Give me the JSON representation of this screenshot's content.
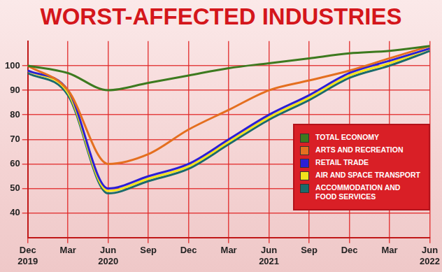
{
  "chart_data": {
    "type": "line",
    "title": "WORST-AFFECTED INDUSTRIES",
    "categories": [
      [
        "Dec",
        "2019"
      ],
      [
        "Mar"
      ],
      [
        "Jun",
        "2020"
      ],
      [
        "Sep"
      ],
      [
        "Dec"
      ],
      [
        "Mar"
      ],
      [
        "Jun",
        "2021"
      ],
      [
        "Sep"
      ],
      [
        "Dec"
      ],
      [
        "Mar"
      ],
      [
        "Jun",
        "2022"
      ]
    ],
    "series": [
      {
        "name": "TOTAL ECONOMY",
        "color": "#3d7a1f",
        "values": [
          100,
          97,
          90,
          93,
          96,
          99,
          101,
          103,
          105,
          106,
          108
        ]
      },
      {
        "name": "ARTS AND RECREATION",
        "color": "#e46f1f",
        "values": [
          100,
          90,
          60,
          64,
          74,
          82,
          90,
          94,
          98,
          103,
          108
        ]
      },
      {
        "name": "RETAIL TRADE",
        "color": "#2b1fd6",
        "values": [
          98,
          90,
          50,
          55,
          60,
          70,
          80,
          88,
          97,
          102,
          107
        ]
      },
      {
        "name": "AIR AND SPACE TRANSPORT",
        "color": "#f2e21c",
        "values": [
          98,
          89,
          49,
          54,
          59,
          69,
          79,
          87,
          96,
          101,
          107
        ]
      },
      {
        "name": "ACCOMMODATION AND FOOD SERVICES",
        "color": "#1b6b6b",
        "values": [
          97,
          88,
          48,
          53,
          58,
          68,
          78,
          86,
          95,
          100,
          106
        ]
      }
    ],
    "ylim": [
      30,
      110
    ],
    "yticks": [
      40,
      50,
      60,
      70,
      80,
      90,
      100
    ],
    "grid": true,
    "legend": "right",
    "marker": "none",
    "line_style": "solid"
  }
}
